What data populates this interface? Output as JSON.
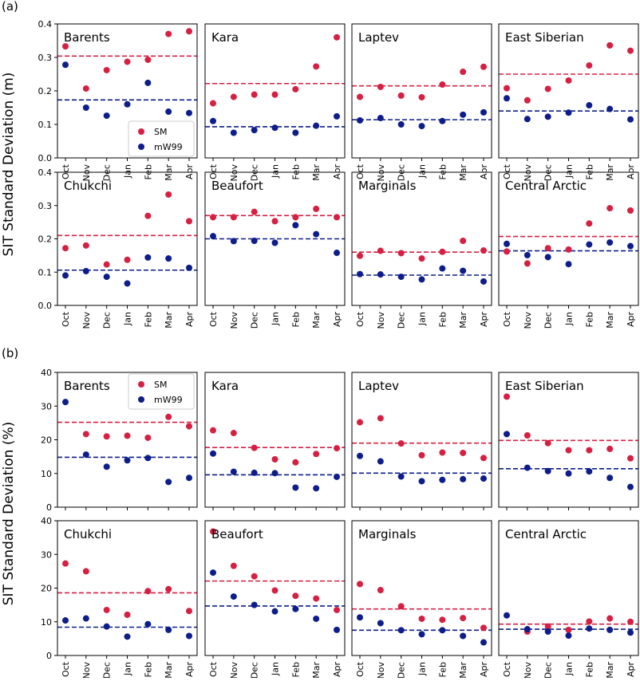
{
  "colors": {
    "SM": "#d62042",
    "mW99": "#0d1d8a"
  },
  "months": [
    "Oct",
    "Nov",
    "Dec",
    "Jan",
    "Feb",
    "Mar",
    "Apr"
  ],
  "chart_data": [
    {
      "type": "scatter",
      "panel_label": "(a)",
      "ylabel": "SIT Standard Deviation (m)",
      "ylim": [
        0,
        0.4
      ],
      "yticks": [
        "0.0",
        "0.1",
        "0.2",
        "0.3",
        "0.4"
      ],
      "legend": {
        "location": "Barents",
        "placement": "lower-right",
        "entries": [
          "SM",
          "mW99"
        ]
      },
      "regions": [
        {
          "name": "Barents",
          "SM": [
            0.333,
            0.207,
            0.262,
            0.287,
            0.293,
            0.37,
            0.378
          ],
          "mW99": [
            0.278,
            0.15,
            0.126,
            0.16,
            0.224,
            0.138,
            0.134
          ],
          "SM_mean": 0.304,
          "mW99_mean": 0.173
        },
        {
          "name": "Kara",
          "SM": [
            0.163,
            0.182,
            0.189,
            0.189,
            0.205,
            0.273,
            0.36
          ],
          "mW99": [
            0.11,
            0.075,
            0.083,
            0.09,
            0.075,
            0.096,
            0.124
          ],
          "SM_mean": 0.222,
          "mW99_mean": 0.093
        },
        {
          "name": "Laptev",
          "SM": [
            0.182,
            0.212,
            0.186,
            0.181,
            0.219,
            0.257,
            0.272
          ],
          "mW99": [
            0.112,
            0.119,
            0.1,
            0.095,
            0.11,
            0.129,
            0.136
          ],
          "SM_mean": 0.215,
          "mW99_mean": 0.114
        },
        {
          "name": "East Siberian",
          "SM": [
            0.208,
            0.172,
            0.206,
            0.231,
            0.276,
            0.336,
            0.32
          ],
          "mW99": [
            0.178,
            0.116,
            0.123,
            0.135,
            0.157,
            0.146,
            0.115
          ],
          "SM_mean": 0.25,
          "mW99_mean": 0.14
        }
      ]
    },
    {
      "type": "scatter",
      "ylabel": "",
      "ylim": [
        0,
        0.4
      ],
      "yticks": [
        "0.0",
        "0.1",
        "0.2",
        "0.3",
        "0.4"
      ],
      "regions": [
        {
          "name": "Chukchi",
          "SM": [
            0.172,
            0.18,
            0.123,
            0.137,
            0.269,
            0.333,
            0.253
          ],
          "mW99": [
            0.09,
            0.103,
            0.086,
            0.066,
            0.144,
            0.141,
            0.113
          ],
          "SM_mean": 0.21,
          "mW99_mean": 0.106
        },
        {
          "name": "Beaufort",
          "SM": [
            0.265,
            0.265,
            0.281,
            0.253,
            0.265,
            0.29,
            0.265
          ],
          "mW99": [
            0.208,
            0.193,
            0.194,
            0.188,
            0.241,
            0.214,
            0.158
          ],
          "SM_mean": 0.27,
          "mW99_mean": 0.2
        },
        {
          "name": "Marginals",
          "SM": [
            0.149,
            0.164,
            0.157,
            0.141,
            0.161,
            0.194,
            0.165
          ],
          "mW99": [
            0.094,
            0.093,
            0.086,
            0.078,
            0.111,
            0.104,
            0.072
          ],
          "SM_mean": 0.16,
          "mW99_mean": 0.091
        },
        {
          "name": "Central Arctic",
          "SM": [
            0.162,
            0.126,
            0.172,
            0.168,
            0.246,
            0.292,
            0.285
          ],
          "mW99": [
            0.185,
            0.151,
            0.145,
            0.124,
            0.183,
            0.189,
            0.178
          ],
          "SM_mean": 0.207,
          "mW99_mean": 0.164
        }
      ]
    },
    {
      "type": "scatter",
      "panel_label": "(b)",
      "ylabel": "SIT Standard Deviation (%)",
      "ylim": [
        0,
        40
      ],
      "yticks": [
        "0",
        "10",
        "20",
        "30",
        "40"
      ],
      "legend": {
        "location": "Barents",
        "placement": "upper-right",
        "entries": [
          "SM",
          "mW99"
        ]
      },
      "regions": [
        {
          "name": "Barents",
          "SM": [
            null,
            21.7,
            21.0,
            21.2,
            20.6,
            26.8,
            24.0
          ],
          "mW99": [
            31.2,
            15.6,
            12.0,
            13.9,
            14.6,
            7.5,
            8.7
          ],
          "SM_mean": 25.2,
          "mW99_mean": 14.8
        },
        {
          "name": "Kara",
          "SM": [
            22.8,
            22.0,
            17.6,
            14.2,
            13.3,
            15.8,
            17.5
          ],
          "mW99": [
            15.9,
            10.5,
            10.2,
            10.1,
            5.8,
            5.6,
            9.0
          ],
          "SM_mean": 17.7,
          "mW99_mean": 9.6
        },
        {
          "name": "Laptev",
          "SM": [
            25.2,
            26.4,
            18.9,
            15.4,
            16.2,
            16.1,
            14.6
          ],
          "mW99": [
            15.2,
            13.6,
            9.1,
            7.7,
            8.1,
            8.3,
            8.5
          ],
          "SM_mean": 19.0,
          "mW99_mean": 10.1
        },
        {
          "name": "East Siberian",
          "SM": [
            32.8,
            21.3,
            19.0,
            16.9,
            16.9,
            17.3,
            14.5
          ],
          "mW99": [
            21.7,
            11.7,
            10.7,
            10.0,
            10.6,
            8.7,
            6.0
          ],
          "SM_mean": 19.8,
          "mW99_mean": 11.4
        }
      ]
    },
    {
      "type": "scatter",
      "ylabel": "",
      "ylim": [
        0,
        40
      ],
      "yticks": [
        "0",
        "10",
        "20",
        "30",
        "40"
      ],
      "regions": [
        {
          "name": "Chukchi",
          "SM": [
            27.3,
            25.0,
            13.5,
            12.1,
            19.1,
            19.7,
            13.2
          ],
          "mW99": [
            10.4,
            11.0,
            8.6,
            5.6,
            9.3,
            7.6,
            5.8
          ],
          "SM_mean": 18.6,
          "mW99_mean": 8.4
        },
        {
          "name": "Beaufort",
          "SM": [
            36.8,
            26.6,
            23.5,
            19.3,
            17.7,
            16.9,
            13.5
          ],
          "mW99": [
            24.6,
            17.5,
            15.0,
            13.1,
            13.8,
            10.9,
            7.6
          ],
          "SM_mean": 22.1,
          "mW99_mean": 14.7
        },
        {
          "name": "Marginals",
          "SM": [
            21.2,
            19.4,
            14.6,
            10.9,
            10.6,
            11.1,
            8.2
          ],
          "mW99": [
            11.3,
            9.6,
            7.5,
            6.3,
            7.5,
            5.8,
            3.9
          ],
          "SM_mean": 13.8,
          "mW99_mean": 7.5
        },
        {
          "name": "Central Arctic",
          "SM": [
            null,
            7.1,
            8.6,
            7.6,
            10.1,
            11.0,
            10.0
          ],
          "mW99": [
            11.9,
            7.8,
            7.1,
            5.9,
            8.0,
            7.6,
            6.8
          ],
          "SM_mean": 9.3,
          "mW99_mean": 7.8
        }
      ]
    }
  ]
}
